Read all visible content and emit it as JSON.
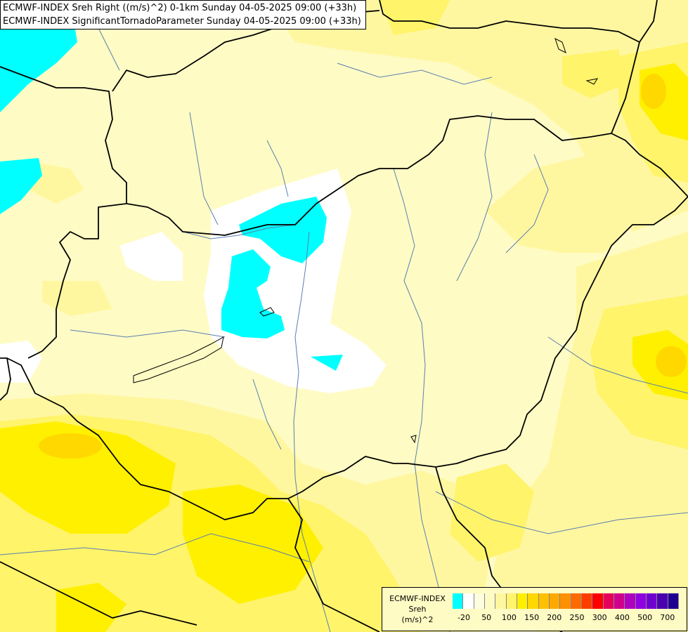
{
  "header": {
    "line1": "ECMWF-INDEX Sreh Right ((m/s)^2) 0-1km Sunday 04-05-2025 09:00 (+33h)",
    "line2": "ECMWF-INDEX SignificantTornadoParameter Sunday 04-05-2025 09:00 (+33h)"
  },
  "legend": {
    "model": "ECMWF-INDEX",
    "variable": "Sreh",
    "unit": "(m/s)^2",
    "colors": [
      "#00ffff",
      "#ffffff",
      "#fffde0",
      "#fffbc4",
      "#fff7a0",
      "#fff46a",
      "#fff000",
      "#ffd800",
      "#ffc000",
      "#ffa800",
      "#ff9000",
      "#ff6a00",
      "#ff3c00",
      "#ff0000",
      "#e6005a",
      "#d0008c",
      "#b000c0",
      "#9000e0",
      "#7000d0",
      "#4a00b0",
      "#200090"
    ],
    "ticks": [
      "-20",
      "50",
      "100",
      "150",
      "200",
      "250",
      "300",
      "400",
      "500",
      "700"
    ]
  },
  "map": {
    "colors": {
      "cyan": "#00ffff",
      "white": "#ffffff",
      "pale": "#fffbc4",
      "light": "#fff7a0",
      "yellow": "#fff46a",
      "strong": "#fff000",
      "orange": "#ffd800",
      "river": "#5a7fb0",
      "border": "#000000"
    }
  }
}
